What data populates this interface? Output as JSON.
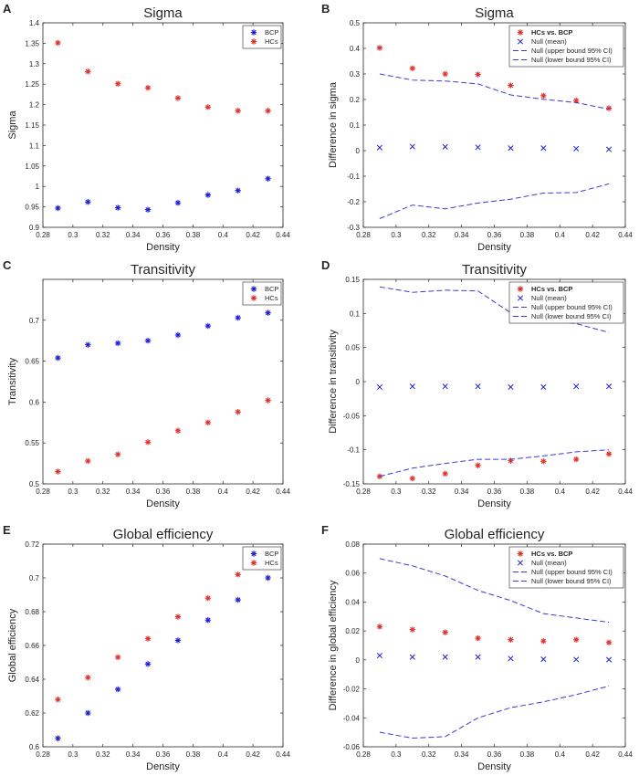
{
  "colors": {
    "blue": "#1f1fd9",
    "red": "#e0312c",
    "dash": "#3b3bd0",
    "axis": "#262626"
  },
  "chart_data": [
    {
      "panel": "A",
      "type": "scatter",
      "title": "Sigma",
      "xlabel": "Density",
      "ylabel": "Sigma",
      "xlim": [
        0.28,
        0.44
      ],
      "ylim": [
        0.9,
        1.4
      ],
      "xticks": [
        "0.28",
        "0.3",
        "0.32",
        "0.34",
        "0.36",
        "0.38",
        "0.4",
        "0.42",
        "0.44"
      ],
      "yticks": [
        "0.9",
        "0.95",
        "1",
        "1.05",
        "1.1",
        "1.15",
        "1.2",
        "1.25",
        "1.3",
        "1.35",
        "1.4"
      ],
      "x": [
        0.29,
        0.31,
        0.33,
        0.35,
        0.37,
        0.39,
        0.41,
        0.43
      ],
      "legend_position": "top-right",
      "series": [
        {
          "name": "BCP",
          "marker": "*",
          "color": "blue",
          "values": [
            0.947,
            0.962,
            0.948,
            0.943,
            0.96,
            0.979,
            0.99,
            1.019
          ]
        },
        {
          "name": "HCs",
          "marker": "*",
          "color": "red",
          "values": [
            1.351,
            1.281,
            1.251,
            1.241,
            1.216,
            1.194,
            1.185,
            1.185
          ]
        }
      ]
    },
    {
      "panel": "B",
      "type": "scatter",
      "title": "Sigma",
      "xlabel": "Density",
      "ylabel": "Difference in sigma",
      "xlim": [
        0.28,
        0.44
      ],
      "ylim": [
        -0.3,
        0.5
      ],
      "xticks": [
        "0.28",
        "0.3",
        "0.32",
        "0.34",
        "0.36",
        "0.38",
        "0.4",
        "0.42",
        "0.44"
      ],
      "yticks": [
        "-0.3",
        "-0.2",
        "-0.1",
        "0",
        "0.1",
        "0.2",
        "0.3",
        "0.4",
        "0.5"
      ],
      "x": [
        0.29,
        0.31,
        0.33,
        0.35,
        0.37,
        0.39,
        0.41,
        0.43
      ],
      "legend_position": "top-right",
      "series": [
        {
          "name": "HCs vs. BCP",
          "marker": "*",
          "color": "red",
          "bold": true,
          "values": [
            0.402,
            0.322,
            0.3,
            0.298,
            0.255,
            0.215,
            0.196,
            0.166
          ]
        },
        {
          "name": "Null (mean)",
          "marker": "x",
          "color": "blue",
          "values": [
            0.012,
            0.016,
            0.015,
            0.013,
            0.01,
            0.01,
            0.008,
            0.005
          ]
        },
        {
          "name": "Null (upper bound 95% CI)",
          "marker": "dash",
          "color": "dash",
          "values": [
            0.3,
            0.276,
            0.272,
            0.261,
            0.218,
            0.201,
            0.188,
            0.162
          ]
        },
        {
          "name": "Null (lower bound 95% CI)",
          "marker": "dash",
          "color": "dash",
          "values": [
            -0.266,
            -0.213,
            -0.228,
            -0.205,
            -0.19,
            -0.166,
            -0.164,
            -0.13
          ]
        }
      ]
    },
    {
      "panel": "C",
      "type": "scatter",
      "title": "Transitivity",
      "xlabel": "Density",
      "ylabel": "Transitivity",
      "xlim": [
        0.28,
        0.44
      ],
      "ylim": [
        0.5,
        0.75
      ],
      "xticks": [
        "0.28",
        "0.3",
        "0.32",
        "0.34",
        "0.36",
        "0.38",
        "0.4",
        "0.42",
        "0.44"
      ],
      "yticks": [
        "0.5",
        "0.55",
        "0.6",
        "0.65",
        "0.7"
      ],
      "x": [
        0.29,
        0.31,
        0.33,
        0.35,
        0.37,
        0.39,
        0.41,
        0.43
      ],
      "legend_position": "top-right",
      "series": [
        {
          "name": "BCP",
          "marker": "*",
          "color": "blue",
          "values": [
            0.654,
            0.67,
            0.672,
            0.675,
            0.682,
            0.693,
            0.703,
            0.709
          ]
        },
        {
          "name": "HCs",
          "marker": "*",
          "color": "red",
          "values": [
            0.515,
            0.528,
            0.536,
            0.551,
            0.565,
            0.575,
            0.588,
            0.602
          ]
        }
      ]
    },
    {
      "panel": "D",
      "type": "scatter",
      "title": "Transitivity",
      "xlabel": "Density",
      "ylabel": "Difference in transitivity",
      "xlim": [
        0.28,
        0.44
      ],
      "ylim": [
        -0.15,
        0.15
      ],
      "xticks": [
        "0.28",
        "0.3",
        "0.32",
        "0.34",
        "0.36",
        "0.38",
        "0.4",
        "0.42",
        "0.44"
      ],
      "yticks": [
        "-0.15",
        "-0.1",
        "-0.05",
        "0",
        "0.05",
        "0.1",
        "0.15"
      ],
      "x": [
        0.29,
        0.31,
        0.33,
        0.35,
        0.37,
        0.39,
        0.41,
        0.43
      ],
      "legend_position": "top-right",
      "series": [
        {
          "name": "HCs vs. BCP",
          "marker": "*",
          "color": "red",
          "bold": true,
          "values": [
            -0.139,
            -0.142,
            -0.135,
            -0.123,
            -0.116,
            -0.117,
            -0.114,
            -0.106
          ]
        },
        {
          "name": "Null (mean)",
          "marker": "x",
          "color": "blue",
          "values": [
            -0.008,
            -0.007,
            -0.007,
            -0.007,
            -0.008,
            -0.008,
            -0.007,
            -0.007
          ]
        },
        {
          "name": "Null (upper bound 95% CI)",
          "marker": "dash",
          "color": "dash",
          "values": [
            0.139,
            0.131,
            0.134,
            0.133,
            0.101,
            0.09,
            0.085,
            0.072
          ]
        },
        {
          "name": "Null (lower bound 95% CI)",
          "marker": "dash",
          "color": "dash",
          "values": [
            -0.139,
            -0.127,
            -0.12,
            -0.114,
            -0.114,
            -0.109,
            -0.103,
            -0.1
          ]
        }
      ]
    },
    {
      "panel": "E",
      "type": "scatter",
      "title": "Global efficiency",
      "xlabel": "Density",
      "ylabel": "Global efficiency",
      "xlim": [
        0.28,
        0.44
      ],
      "ylim": [
        0.6,
        0.72
      ],
      "xticks": [
        "0.28",
        "0.3",
        "0.32",
        "0.34",
        "0.36",
        "0.38",
        "0.4",
        "0.42",
        "0.44"
      ],
      "yticks": [
        "0.6",
        "0.62",
        "0.64",
        "0.66",
        "0.68",
        "0.7",
        "0.72"
      ],
      "x": [
        0.29,
        0.31,
        0.33,
        0.35,
        0.37,
        0.39,
        0.41,
        0.43
      ],
      "legend_position": "top-right",
      "series": [
        {
          "name": "BCP",
          "marker": "*",
          "color": "blue",
          "values": [
            0.605,
            0.62,
            0.634,
            0.649,
            0.663,
            0.675,
            0.687,
            0.7
          ]
        },
        {
          "name": "HCs",
          "marker": "*",
          "color": "red",
          "values": [
            0.628,
            0.641,
            0.653,
            0.664,
            0.677,
            0.688,
            0.702,
            0.713
          ]
        }
      ]
    },
    {
      "panel": "F",
      "type": "scatter",
      "title": "Global efficiency",
      "xlabel": "Density",
      "ylabel": "Difference in global efficiency",
      "xlim": [
        0.28,
        0.44
      ],
      "ylim": [
        -0.06,
        0.08
      ],
      "xticks": [
        "0.28",
        "0.3",
        "0.32",
        "0.34",
        "0.36",
        "0.38",
        "0.4",
        "0.42",
        "0.44"
      ],
      "yticks": [
        "-0.06",
        "-0.04",
        "-0.02",
        "0",
        "0.02",
        "0.04",
        "0.06",
        "0.08"
      ],
      "x": [
        0.29,
        0.31,
        0.33,
        0.35,
        0.37,
        0.39,
        0.41,
        0.43
      ],
      "legend_position": "top-right",
      "series": [
        {
          "name": "HCs vs. BCP",
          "marker": "*",
          "color": "red",
          "bold": true,
          "values": [
            0.023,
            0.021,
            0.019,
            0.015,
            0.014,
            0.013,
            0.014,
            0.012
          ]
        },
        {
          "name": "Null (mean)",
          "marker": "x",
          "color": "blue",
          "values": [
            0.003,
            0.002,
            0.002,
            0.002,
            0.001,
            0.0005,
            0.0003,
            0.0002
          ]
        },
        {
          "name": "Null (upper bound 95% CI)",
          "marker": "dash",
          "color": "dash",
          "values": [
            0.07,
            0.065,
            0.058,
            0.048,
            0.041,
            0.032,
            0.029,
            0.026
          ]
        },
        {
          "name": "Null (lower bound 95% CI)",
          "marker": "dash",
          "color": "dash",
          "values": [
            -0.05,
            -0.054,
            -0.053,
            -0.04,
            -0.033,
            -0.029,
            -0.024,
            -0.018
          ]
        }
      ]
    }
  ]
}
